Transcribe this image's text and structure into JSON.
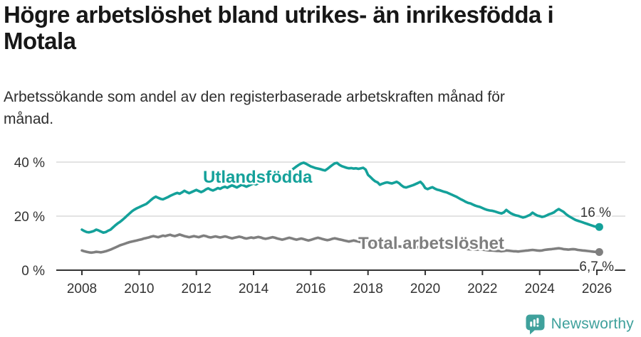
{
  "header": {
    "title_lines": [
      "Högre arbetslöshet bland utrikes- än inrikesfödda i",
      "Motala"
    ],
    "subtitle_lines": [
      "Arbetssökande som andel av den registerbaserade arbetskraften månad för",
      "månad."
    ]
  },
  "footer": {
    "brand": "Newsworthy",
    "brand_color": "#3fa19c",
    "logo_icon": "bar-chart-speech-bubble-icon"
  },
  "colors": {
    "accent_teal": "#14a19a",
    "series_gray": "#7f7f7f",
    "grid": "#dadada",
    "axis": "#333333",
    "tick_text": "#333333",
    "annotation_text": "#333333"
  },
  "chart_data": {
    "type": "line",
    "title": "Högre arbetslöshet bland utrikes- än inrikesfödda i Motala",
    "subtitle": "Arbetssökande som andel av den registerbaserade arbetskraften månad för månad.",
    "grid": "horizontal-only",
    "legend": "inline-series-labels",
    "x_axis": {
      "tick_years": [
        2008,
        2010,
        2012,
        2014,
        2016,
        2018,
        2020,
        2022,
        2024,
        2026
      ]
    },
    "y_axis": {
      "range": [
        0,
        40
      ],
      "ticks": [
        {
          "value": 0,
          "label": "0 %"
        },
        {
          "value": 20,
          "label": "20 %"
        },
        {
          "value": 40,
          "label": "40 %"
        }
      ]
    },
    "start": {
      "year": 2008,
      "month": 1
    },
    "step_months": 1,
    "series": [
      {
        "name": "Utlandsfödda",
        "color": "#14a19a",
        "end_label": "16 %",
        "values": [
          15.0,
          14.5,
          14.1,
          14.0,
          14.2,
          14.5,
          15.0,
          14.7,
          14.3,
          13.9,
          14.1,
          14.6,
          15.0,
          15.8,
          16.6,
          17.3,
          17.9,
          18.6,
          19.4,
          20.2,
          21.0,
          21.8,
          22.4,
          22.9,
          23.3,
          23.7,
          24.1,
          24.5,
          25.2,
          26.0,
          26.7,
          27.2,
          26.8,
          26.4,
          26.2,
          26.6,
          27.0,
          27.5,
          27.9,
          28.3,
          28.6,
          28.3,
          28.8,
          29.4,
          28.9,
          28.5,
          28.9,
          29.3,
          29.7,
          29.3,
          28.9,
          29.3,
          29.9,
          30.3,
          29.8,
          29.5,
          29.9,
          30.4,
          30.1,
          30.6,
          30.9,
          30.5,
          31.0,
          31.4,
          31.0,
          30.6,
          31.1,
          31.6,
          31.3,
          30.9,
          31.3,
          31.7,
          32.1,
          31.7,
          32.2,
          32.7,
          33.1,
          33.6,
          34.0,
          33.6,
          34.1,
          34.6,
          35.0,
          35.4,
          35.1,
          35.6,
          36.1,
          36.6,
          37.1,
          37.7,
          38.4,
          39.0,
          39.5,
          39.8,
          39.4,
          38.9,
          38.4,
          38.1,
          37.8,
          37.6,
          37.4,
          37.1,
          36.9,
          37.5,
          38.2,
          38.9,
          39.5,
          39.7,
          39.0,
          38.5,
          38.2,
          37.9,
          37.7,
          37.8,
          37.6,
          37.7,
          37.5,
          37.7,
          37.9,
          37.2,
          35.3,
          34.5,
          33.6,
          32.9,
          32.5,
          31.6,
          32.0,
          32.3,
          32.5,
          32.3,
          32.1,
          32.4,
          32.7,
          32.2,
          31.4,
          30.8,
          30.6,
          30.9,
          31.2,
          31.5,
          31.9,
          32.3,
          32.7,
          31.8,
          30.4,
          30.0,
          30.4,
          30.7,
          30.2,
          29.8,
          29.6,
          29.3,
          29.0,
          28.8,
          28.4,
          28.0,
          27.6,
          27.2,
          26.7,
          26.2,
          25.8,
          25.3,
          24.9,
          24.7,
          24.3,
          23.9,
          23.6,
          23.4,
          23.0,
          22.6,
          22.3,
          22.1,
          22.0,
          21.8,
          21.5,
          21.2,
          21.0,
          21.4,
          22.3,
          21.6,
          21.0,
          20.6,
          20.3,
          20.1,
          19.8,
          19.5,
          19.7,
          20.1,
          20.5,
          21.3,
          20.7,
          20.2,
          20.0,
          19.7,
          19.9,
          20.3,
          20.7,
          21.0,
          21.4,
          22.1,
          22.6,
          22.1,
          21.6,
          20.8,
          20.1,
          19.6,
          19.1,
          18.6,
          18.3,
          18.0,
          17.7,
          17.4,
          17.1,
          16.8,
          16.5,
          16.2,
          16.1,
          16.0
        ]
      },
      {
        "name": "Total arbetslöshet",
        "color": "#7f7f7f",
        "end_label": "6,7 %",
        "values": [
          7.3,
          7.0,
          6.8,
          6.6,
          6.5,
          6.6,
          6.8,
          6.7,
          6.6,
          6.8,
          7.0,
          7.3,
          7.6,
          8.0,
          8.4,
          8.8,
          9.2,
          9.5,
          9.8,
          10.1,
          10.4,
          10.6,
          10.8,
          11.0,
          11.2,
          11.4,
          11.7,
          11.9,
          12.1,
          12.4,
          12.6,
          12.4,
          12.2,
          12.5,
          12.8,
          12.6,
          12.9,
          13.1,
          12.8,
          12.6,
          12.9,
          13.2,
          12.9,
          12.6,
          12.4,
          12.2,
          12.4,
          12.6,
          12.4,
          12.2,
          12.5,
          12.8,
          12.6,
          12.3,
          12.1,
          12.3,
          12.5,
          12.3,
          12.1,
          12.3,
          12.5,
          12.3,
          12.0,
          11.8,
          12.0,
          12.2,
          12.4,
          12.2,
          11.9,
          11.7,
          11.9,
          12.1,
          11.9,
          12.1,
          12.3,
          12.1,
          11.8,
          11.6,
          11.8,
          12.0,
          12.2,
          12.0,
          11.7,
          11.5,
          11.3,
          11.5,
          11.8,
          12.0,
          11.8,
          11.5,
          11.3,
          11.5,
          11.7,
          11.5,
          11.2,
          11.0,
          11.2,
          11.5,
          11.8,
          12.0,
          11.8,
          11.5,
          11.3,
          11.1,
          11.3,
          11.6,
          11.8,
          11.6,
          11.4,
          11.2,
          11.0,
          10.8,
          10.6,
          10.8,
          11.0,
          10.8,
          10.6,
          10.4,
          10.6,
          10.8,
          10.6,
          10.3,
          10.0,
          9.8,
          9.6,
          9.4,
          9.5,
          9.7,
          9.5,
          9.3,
          9.1,
          9.0,
          8.9,
          8.8,
          8.7,
          8.6,
          8.5,
          8.6,
          8.8,
          8.7,
          8.6,
          8.5,
          8.7,
          8.9,
          9.1,
          9.3,
          9.6,
          9.9,
          10.1,
          10.2,
          10.0,
          9.8,
          9.6,
          9.4,
          9.2,
          9.0,
          8.8,
          8.6,
          8.4,
          8.2,
          8.0,
          7.9,
          7.8,
          7.7,
          7.7,
          7.6,
          7.6,
          7.7,
          7.6,
          7.5,
          7.4,
          7.3,
          7.3,
          7.2,
          7.1,
          7.1,
          7.0,
          7.1,
          7.3,
          7.2,
          7.1,
          7.0,
          7.0,
          6.9,
          7.0,
          7.1,
          7.2,
          7.3,
          7.4,
          7.5,
          7.4,
          7.3,
          7.2,
          7.3,
          7.5,
          7.6,
          7.7,
          7.8,
          7.9,
          8.0,
          8.1,
          8.0,
          7.8,
          7.7,
          7.6,
          7.7,
          7.8,
          7.7,
          7.5,
          7.4,
          7.3,
          7.2,
          7.1,
          7.0,
          6.9,
          6.8,
          6.8,
          6.7
        ]
      }
    ]
  }
}
